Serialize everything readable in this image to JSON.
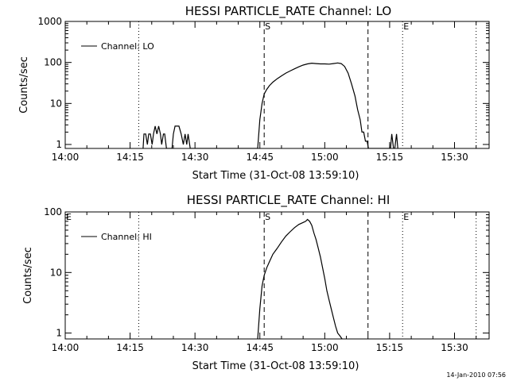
{
  "footer": {
    "timestamp": "14-Jan-2010 07:56"
  },
  "chart_data": [
    {
      "type": "line",
      "title": "HESSI PARTICLE_RATE Channel: LO",
      "xlabel": "Start Time (31-Oct-08 13:59:10)",
      "ylabel": "Counts/sec",
      "y_scale": "log",
      "xlim": [
        "14:00",
        "15:38"
      ],
      "ylim": [
        0.8,
        1000
      ],
      "x_ticks": [
        "14:00",
        "14:15",
        "14:30",
        "14:45",
        "15:00",
        "15:15",
        "15:30"
      ],
      "y_ticks": [
        "1",
        "10",
        "100",
        "1000"
      ],
      "legend": {
        "position": "top-left",
        "entries": [
          "Channel: LO"
        ]
      },
      "markers": [
        {
          "time": "14:17",
          "style": "dotted",
          "label": ""
        },
        {
          "time": "14:46",
          "style": "dashed",
          "label": "S"
        },
        {
          "time": "15:10",
          "style": "dashed",
          "label": ""
        },
        {
          "time": "15:18",
          "style": "dotted",
          "label": "E"
        },
        {
          "time": "15:35",
          "style": "dotted",
          "label": ""
        }
      ],
      "series": [
        {
          "name": "Channel: LO",
          "x": [
            "14:18.0",
            "14:18.2",
            "14:18.6",
            "14:19.0",
            "14:19.3",
            "14:19.7",
            "14:20.1",
            "14:20.4",
            "14:20.8",
            "14:21.2",
            "14:21.6",
            "14:22.0",
            "14:22.3",
            "14:22.7",
            "14:23.0",
            "14:23.4",
            "14:24.7",
            "14:25.0",
            "14:25.4",
            "14:25.8",
            "14:26.3",
            "14:26.8",
            "14:27.3",
            "14:27.7",
            "14:28.1",
            "14:28.4",
            "14:28.9",
            "14:44.5",
            "14:45.0",
            "14:45.5",
            "14:46.0",
            "14:46.6",
            "14:47.2",
            "14:48.0",
            "14:49.0",
            "14:50.0",
            "14:51.0",
            "14:52.0",
            "14:53.0",
            "14:54.0",
            "14:55.0",
            "14:56.0",
            "14:57.0",
            "14:58.0",
            "14:59.0",
            "15:00.0",
            "15:01.0",
            "15:02.0",
            "15:03.0",
            "15:03.8",
            "15:04.6",
            "15:05.4",
            "15:06.2",
            "15:07.0",
            "15:07.6",
            "15:08.2",
            "15:08.6",
            "15:09.0",
            "15:09.4",
            "15:09.8",
            "15:10.1",
            "15:15.2",
            "15:15.5",
            "15:15.9",
            "15:16.2",
            "15:16.6",
            "15:16.9"
          ],
          "y": [
            0.8,
            1.8,
            1.8,
            1.0,
            1.8,
            1.8,
            1.0,
            1.8,
            2.8,
            1.8,
            2.8,
            1.8,
            1.0,
            1.8,
            1.8,
            0.8,
            0.8,
            1.8,
            2.8,
            2.8,
            2.8,
            1.8,
            1.0,
            1.8,
            1.0,
            1.8,
            0.8,
            0.8,
            4,
            10,
            17,
            22,
            27,
            33,
            40,
            47,
            55,
            62,
            70,
            78,
            86,
            92,
            96,
            94,
            92,
            92,
            91,
            94,
            97,
            94,
            80,
            55,
            30,
            15,
            7,
            4,
            2,
            2,
            1.2,
            1.2,
            0.8,
            0.8,
            1.8,
            0.8,
            0.8,
            1.8,
            0.8
          ]
        }
      ]
    },
    {
      "type": "line",
      "title": "HESSI PARTICLE_RATE Channel: HI",
      "xlabel": "Start Time (31-Oct-08 13:59:10)",
      "ylabel": "Counts/sec",
      "y_scale": "log",
      "xlim": [
        "14:00",
        "15:38"
      ],
      "ylim": [
        0.8,
        100
      ],
      "x_ticks": [
        "14:00",
        "14:15",
        "14:30",
        "14:45",
        "15:00",
        "15:15",
        "15:30"
      ],
      "y_ticks": [
        "1",
        "10",
        "100"
      ],
      "legend": {
        "position": "top-left",
        "entries": [
          "Channel: HI"
        ]
      },
      "markers": [
        {
          "time": "14:00",
          "style": "none",
          "label": "E"
        },
        {
          "time": "14:17",
          "style": "dotted",
          "label": ""
        },
        {
          "time": "14:46",
          "style": "dashed",
          "label": "S"
        },
        {
          "time": "15:10",
          "style": "dashed",
          "label": ""
        },
        {
          "time": "15:18",
          "style": "dotted",
          "label": "E"
        },
        {
          "time": "15:35",
          "style": "dotted",
          "label": ""
        }
      ],
      "series": [
        {
          "name": "Channel: HI",
          "x": [
            "14:44.5",
            "14:45.0",
            "14:45.5",
            "14:46.0",
            "14:46.6",
            "14:47.2",
            "14:48.0",
            "14:49.0",
            "14:50.0",
            "14:51.0",
            "14:52.0",
            "14:53.0",
            "14:54.0",
            "14:55.0",
            "14:55.6",
            "14:56.0",
            "14:56.5",
            "14:57.0",
            "14:57.5",
            "14:58.0",
            "14:58.5",
            "14:59.0",
            "14:59.5",
            "15:00.0",
            "15:00.5",
            "15:01.0",
            "15:01.5",
            "15:02.0",
            "15:02.5",
            "15:03.0",
            "15:03.5",
            "15:04.0"
          ],
          "y": [
            0.8,
            2.5,
            6,
            9,
            12,
            15,
            20,
            25,
            32,
            40,
            47,
            55,
            62,
            67,
            70,
            75,
            70,
            60,
            45,
            35,
            25,
            18,
            12,
            8,
            5,
            3.5,
            2.5,
            1.8,
            1.3,
            1.0,
            0.9,
            0.8
          ]
        }
      ]
    }
  ]
}
